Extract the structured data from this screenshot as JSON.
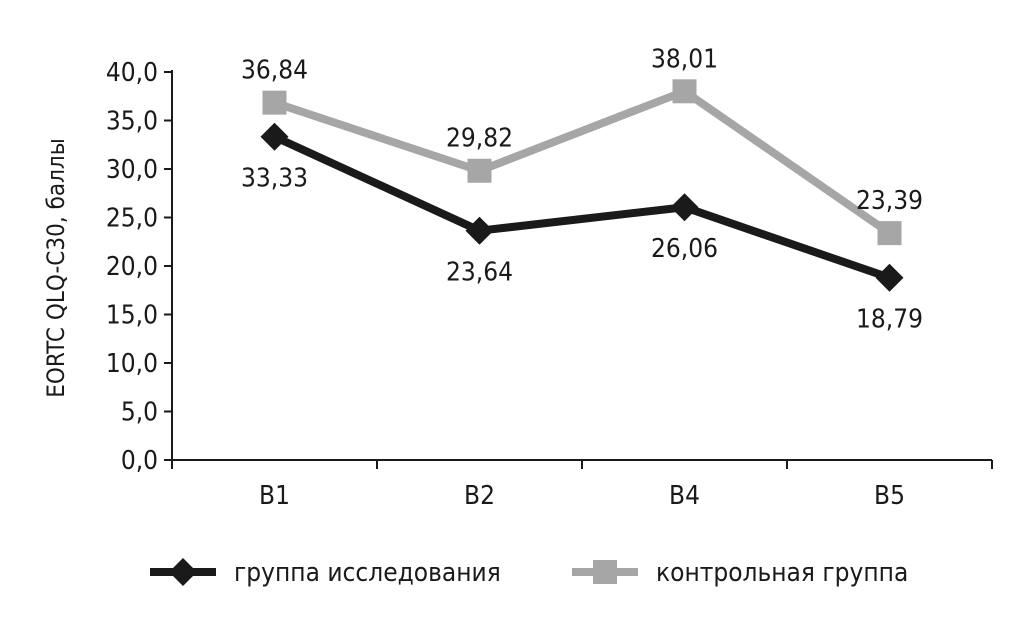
{
  "chart_data": {
    "type": "line",
    "categories": [
      "B1",
      "B2",
      "B4",
      "B5"
    ],
    "series": [
      {
        "name": "группа исследования",
        "values": [
          33.33,
          23.64,
          26.06,
          18.79
        ],
        "labels": [
          "33,33",
          "23,64",
          "26,06",
          "18,79"
        ],
        "color": "#1a1a1a",
        "marker": "diamond"
      },
      {
        "name": "контрольная группа",
        "values": [
          36.84,
          29.82,
          38.01,
          23.39
        ],
        "labels": [
          "36,84",
          "29,82",
          "38,01",
          "23,39"
        ],
        "color": "#a6a6a6",
        "marker": "square"
      }
    ],
    "ylabel": "EORTC QLQ-C30, баллы",
    "xlabel": "",
    "ylim": [
      0,
      40
    ],
    "yticks": [
      0,
      5,
      10,
      15,
      20,
      25,
      30,
      35,
      40
    ],
    "ytick_labels": [
      "0,0",
      "5,0",
      "10,0",
      "15,0",
      "20,0",
      "25,0",
      "30,0",
      "35,0",
      "40,0"
    ],
    "grid": false,
    "legend_position": "bottom"
  }
}
